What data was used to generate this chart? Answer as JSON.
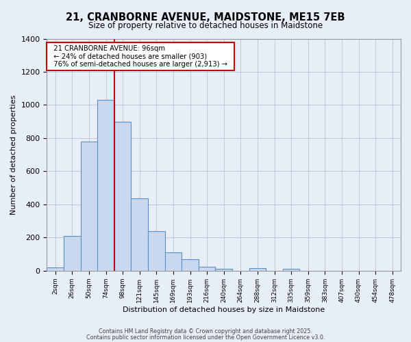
{
  "title": "21, CRANBORNE AVENUE, MAIDSTONE, ME15 7EB",
  "subtitle": "Size of property relative to detached houses in Maidstone",
  "xlabel": "Distribution of detached houses by size in Maidstone",
  "ylabel": "Number of detached properties",
  "bin_labels": [
    "2sqm",
    "26sqm",
    "50sqm",
    "74sqm",
    "98sqm",
    "121sqm",
    "145sqm",
    "169sqm",
    "193sqm",
    "216sqm",
    "240sqm",
    "264sqm",
    "288sqm",
    "312sqm",
    "335sqm",
    "359sqm",
    "383sqm",
    "407sqm",
    "430sqm",
    "454sqm",
    "478sqm"
  ],
  "bar_heights": [
    20,
    210,
    780,
    1030,
    900,
    435,
    240,
    110,
    70,
    25,
    10,
    0,
    15,
    0,
    10,
    0,
    0,
    0,
    0,
    0,
    0
  ],
  "bar_color": "#c8d9ef",
  "bar_edge_color": "#5a8fc3",
  "vline_x_bin": 4,
  "vline_color": "#cc0000",
  "ylim": [
    0,
    1400
  ],
  "yticks": [
    0,
    200,
    400,
    600,
    800,
    1000,
    1200,
    1400
  ],
  "annotation_title": "21 CRANBORNE AVENUE: 96sqm",
  "annotation_line1": "← 24% of detached houses are smaller (903)",
  "annotation_line2": "76% of semi-detached houses are larger (2,913) →",
  "bg_color": "#e8eef8",
  "plot_bg_color": "#e8eef8",
  "grid_color": "#c0c8d8",
  "footer1": "Contains HM Land Registry data © Crown copyright and database right 2025.",
  "footer2": "Contains public sector information licensed under the Open Government Licence v3.0."
}
